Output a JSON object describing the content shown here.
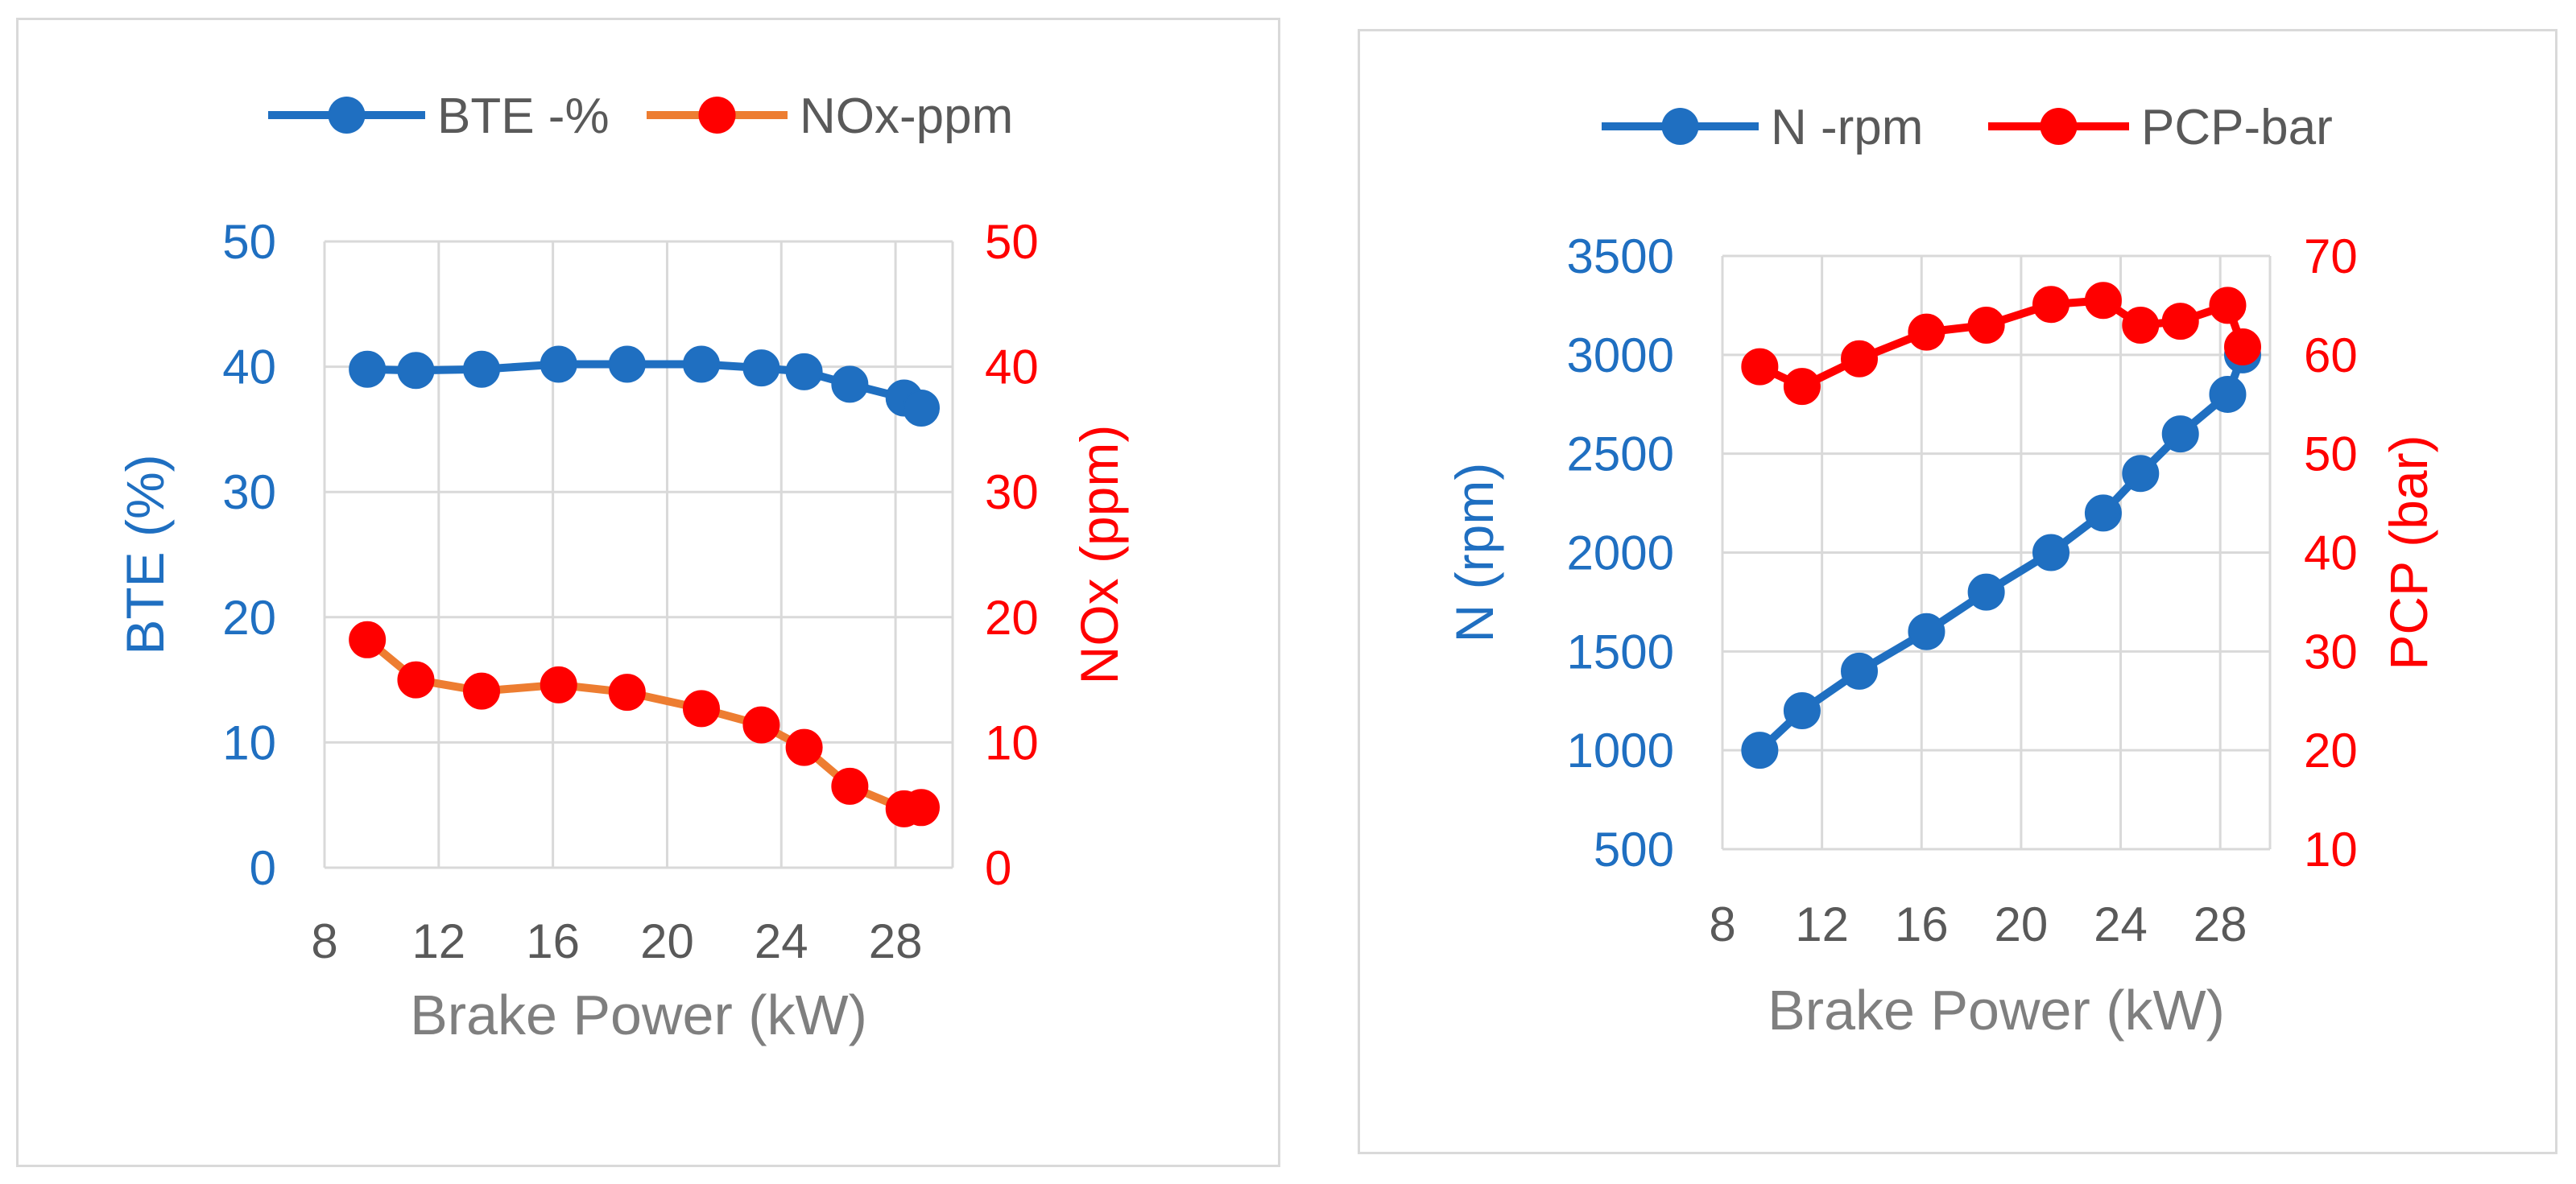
{
  "chart_data": [
    {
      "type": "line",
      "xlabel": "Brake Power (kW)",
      "xlim": [
        8,
        30
      ],
      "xticks": [
        "8",
        "12",
        "16",
        "20",
        "24",
        "28"
      ],
      "x": [
        9.5,
        11.2,
        13.5,
        16.2,
        18.6,
        21.2,
        23.3,
        24.8,
        26.4,
        28.3,
        28.9
      ],
      "y_left": {
        "label": "BTE  (%)",
        "lim": [
          0,
          50
        ],
        "ticks": [
          "0",
          "10",
          "20",
          "30",
          "40",
          "50"
        ],
        "color": "#1f6fc1"
      },
      "y_right": {
        "label": "NOx (ppm)",
        "lim": [
          0,
          50
        ],
        "ticks": [
          "0",
          "10",
          "20",
          "30",
          "40",
          "50"
        ],
        "color": "#ff0000"
      },
      "series": [
        {
          "name": "BTE -%",
          "axis": "left",
          "line_color": "#1f6fc1",
          "marker_color": "#1f6fc1",
          "values": [
            39.8,
            39.7,
            39.8,
            40.2,
            40.2,
            40.2,
            39.9,
            39.6,
            38.6,
            37.5,
            36.7
          ]
        },
        {
          "name": "NOx-ppm",
          "axis": "right",
          "line_color": "#ed7d31",
          "marker_color": "#ff0000",
          "values": [
            18.2,
            15.0,
            14.1,
            14.6,
            14.0,
            12.7,
            11.4,
            9.6,
            6.5,
            4.7,
            4.8
          ]
        }
      ]
    },
    {
      "type": "line",
      "xlabel": "Brake Power (kW)",
      "xlim": [
        8,
        30
      ],
      "xticks": [
        "8",
        "12",
        "16",
        "20",
        "24",
        "28"
      ],
      "x": [
        9.5,
        11.2,
        13.5,
        16.2,
        18.6,
        21.2,
        23.3,
        24.8,
        26.4,
        28.3,
        28.9
      ],
      "y_left": {
        "label": "N (rpm)",
        "lim": [
          500,
          3500
        ],
        "ticks": [
          "500",
          "1000",
          "1500",
          "2000",
          "2500",
          "3000",
          "3500"
        ],
        "color": "#1f6fc1"
      },
      "y_right": {
        "label": "PCP (bar)",
        "lim": [
          10,
          70
        ],
        "ticks": [
          "10",
          "20",
          "30",
          "40",
          "50",
          "60",
          "70"
        ],
        "color": "#ff0000"
      },
      "series": [
        {
          "name": "N -rpm",
          "axis": "left",
          "line_color": "#1f6fc1",
          "marker_color": "#1f6fc1",
          "values": [
            1000,
            1200,
            1400,
            1600,
            1800,
            2000,
            2200,
            2400,
            2600,
            2800,
            3000
          ]
        },
        {
          "name": "PCP-bar",
          "axis": "right",
          "line_color": "#ff0000",
          "marker_color": "#ff0000",
          "values": [
            58.8,
            56.8,
            59.6,
            62.3,
            63.0,
            65.1,
            65.5,
            63.0,
            63.4,
            65.0,
            60.8
          ]
        }
      ]
    }
  ]
}
